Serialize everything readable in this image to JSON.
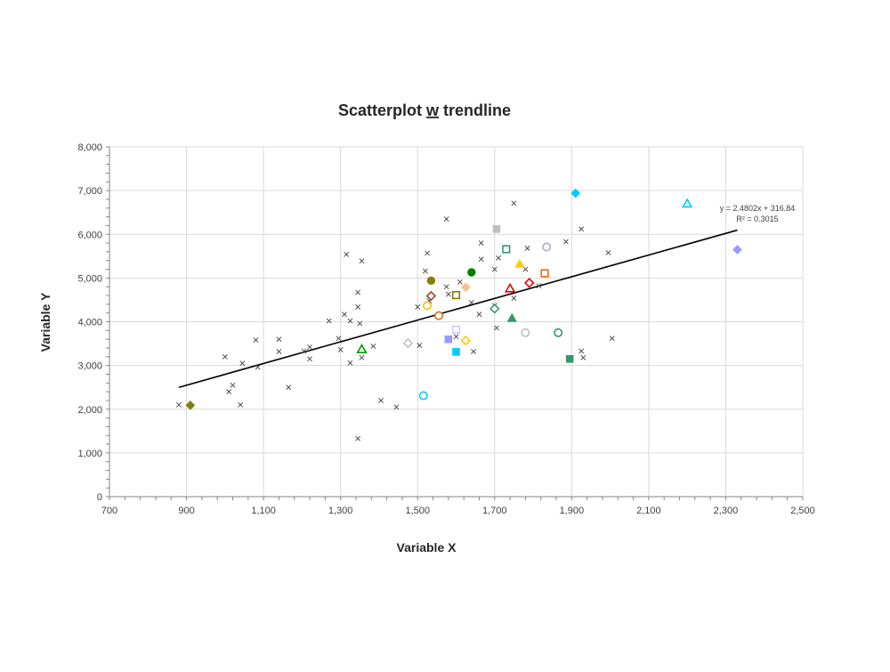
{
  "chart_data": {
    "type": "scatter",
    "title": "Scatterplot w trendline",
    "title_prefix": "Scatterplot ",
    "title_underlined": "w",
    "title_suffix": " trendline",
    "xlabel": "Variable X",
    "ylabel": "Variable Y",
    "xlim": [
      700,
      2500
    ],
    "ylim": [
      0,
      8000
    ],
    "x_ticks": [
      700,
      900,
      1100,
      1300,
      1500,
      1700,
      1900,
      2100,
      2300,
      2500
    ],
    "y_ticks": [
      0,
      1000,
      2000,
      3000,
      4000,
      5000,
      6000,
      7000,
      8000
    ],
    "x_tick_labels": [
      "700",
      "900",
      "1,100",
      "1,300",
      "1,500",
      "1,700",
      "1,900",
      "2,100",
      "2,300",
      "2,500"
    ],
    "y_tick_labels": [
      "0",
      "1,000",
      "2,000",
      "3,000",
      "4,000",
      "5,000",
      "6,000",
      "7,000",
      "8,000"
    ],
    "grid": {
      "vertical": true,
      "horizontal": true
    },
    "grid_color": "#d9d9d9",
    "trendline": {
      "slope": 2.4802,
      "intercept": 316.84,
      "x_range": [
        880,
        2330
      ],
      "color": "#000000",
      "equation_label": "y = 2.4802x + 316.84",
      "r2_label": "R² = 0.3015"
    },
    "cross_points": [
      [
        880,
        2100
      ],
      [
        1000,
        3200
      ],
      [
        1010,
        2400
      ],
      [
        1020,
        2550
      ],
      [
        1040,
        2100
      ],
      [
        1045,
        3050
      ],
      [
        1080,
        3580
      ],
      [
        1085,
        2960
      ],
      [
        1140,
        3600
      ],
      [
        1140,
        3320
      ],
      [
        1165,
        2500
      ],
      [
        1205,
        3330
      ],
      [
        1220,
        3420
      ],
      [
        1220,
        3150
      ],
      [
        1270,
        4020
      ],
      [
        1295,
        3620
      ],
      [
        1300,
        3360
      ],
      [
        1310,
        4170
      ],
      [
        1315,
        5540
      ],
      [
        1325,
        4020
      ],
      [
        1325,
        3060
      ],
      [
        1345,
        4670
      ],
      [
        1345,
        4340
      ],
      [
        1350,
        3960
      ],
      [
        1355,
        3180
      ],
      [
        1355,
        5390
      ],
      [
        1345,
        1330
      ],
      [
        1385,
        3440
      ],
      [
        1405,
        2200
      ],
      [
        1445,
        2050
      ],
      [
        1500,
        4340
      ],
      [
        1505,
        3460
      ],
      [
        1520,
        5160
      ],
      [
        1525,
        5570
      ],
      [
        1530,
        4480
      ],
      [
        1575,
        4800
      ],
      [
        1575,
        6350
      ],
      [
        1580,
        4630
      ],
      [
        1600,
        3660
      ],
      [
        1610,
        4910
      ],
      [
        1640,
        4440
      ],
      [
        1645,
        3320
      ],
      [
        1660,
        4170
      ],
      [
        1665,
        5800
      ],
      [
        1665,
        5430
      ],
      [
        1700,
        5200
      ],
      [
        1700,
        4370
      ],
      [
        1705,
        3860
      ],
      [
        1710,
        5460
      ],
      [
        1750,
        4540
      ],
      [
        1750,
        6710
      ],
      [
        1780,
        5200
      ],
      [
        1785,
        5680
      ],
      [
        1815,
        4820
      ],
      [
        1885,
        5830
      ],
      [
        1925,
        6120
      ],
      [
        1925,
        3330
      ],
      [
        1930,
        3180
      ],
      [
        1995,
        5580
      ],
      [
        2005,
        3620
      ]
    ],
    "points": [
      {
        "x": 910,
        "y": 2090,
        "marker": "diamond",
        "filled": true,
        "color": "#7f7f00"
      },
      {
        "x": 1355,
        "y": 3370,
        "marker": "triangle",
        "filled": false,
        "color": "#009900"
      },
      {
        "x": 1475,
        "y": 3510,
        "marker": "diamond",
        "filled": false,
        "color": "#bfbfbf"
      },
      {
        "x": 1515,
        "y": 2310,
        "marker": "circle",
        "filled": false,
        "color": "#00ccff"
      },
      {
        "x": 1525,
        "y": 4370,
        "marker": "circle",
        "filled": false,
        "color": "#ffc000"
      },
      {
        "x": 1535,
        "y": 4940,
        "marker": "circle",
        "filled": true,
        "color": "#7f7f00"
      },
      {
        "x": 1535,
        "y": 4590,
        "marker": "diamond",
        "filled": false,
        "color": "#99462b"
      },
      {
        "x": 1555,
        "y": 4140,
        "marker": "circle",
        "filled": false,
        "color": "#e46c0a"
      },
      {
        "x": 1580,
        "y": 3600,
        "marker": "square",
        "filled": true,
        "color": "#9999ff"
      },
      {
        "x": 1600,
        "y": 3310,
        "marker": "square",
        "filled": true,
        "color": "#00ccff"
      },
      {
        "x": 1600,
        "y": 3820,
        "marker": "square",
        "filled": false,
        "color": "#ccccff"
      },
      {
        "x": 1600,
        "y": 4610,
        "marker": "square",
        "filled": false,
        "color": "#7f7f00"
      },
      {
        "x": 1625,
        "y": 3570,
        "marker": "diamond",
        "filled": false,
        "color": "#ffcc00"
      },
      {
        "x": 1625,
        "y": 4790,
        "marker": "diamond",
        "filled": true,
        "color": "#fac090"
      },
      {
        "x": 1640,
        "y": 5130,
        "marker": "circle",
        "filled": true,
        "color": "#008000"
      },
      {
        "x": 1700,
        "y": 4300,
        "marker": "diamond",
        "filled": false,
        "color": "#339966"
      },
      {
        "x": 1705,
        "y": 6120,
        "marker": "square",
        "filled": true,
        "color": "#bfbfbf"
      },
      {
        "x": 1730,
        "y": 5660,
        "marker": "square",
        "filled": false,
        "color": "#339966"
      },
      {
        "x": 1740,
        "y": 4760,
        "marker": "triangle",
        "filled": false,
        "color": "#e60000"
      },
      {
        "x": 1745,
        "y": 4080,
        "marker": "triangle",
        "filled": true,
        "color": "#339966"
      },
      {
        "x": 1765,
        "y": 5320,
        "marker": "triangle",
        "filled": true,
        "color": "#ffcc00"
      },
      {
        "x": 1780,
        "y": 3750,
        "marker": "circle",
        "filled": false,
        "color": "#bfbfbf"
      },
      {
        "x": 1790,
        "y": 4890,
        "marker": "diamond",
        "filled": false,
        "color": "#e60000"
      },
      {
        "x": 1830,
        "y": 5110,
        "marker": "square",
        "filled": false,
        "color": "#e46c0a"
      },
      {
        "x": 1835,
        "y": 5710,
        "marker": "circle",
        "filled": false,
        "color": "#b4a7d6"
      },
      {
        "x": 1865,
        "y": 3750,
        "marker": "circle",
        "filled": false,
        "color": "#339966"
      },
      {
        "x": 1895,
        "y": 3150,
        "marker": "square",
        "filled": true,
        "color": "#339966"
      },
      {
        "x": 1910,
        "y": 6940,
        "marker": "diamond",
        "filled": true,
        "color": "#00ccff"
      },
      {
        "x": 2200,
        "y": 6700,
        "marker": "triangle",
        "filled": false,
        "color": "#00ccff"
      },
      {
        "x": 2330,
        "y": 5650,
        "marker": "diamond",
        "filled": true,
        "color": "#9999ff"
      }
    ]
  }
}
